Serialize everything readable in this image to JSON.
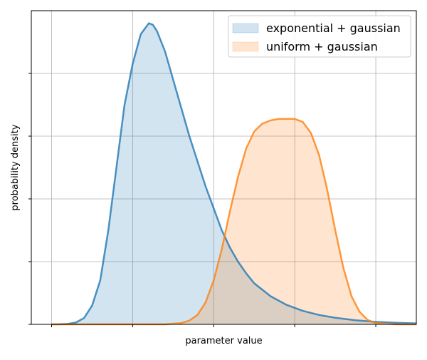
{
  "chart_data": {
    "type": "area",
    "title": "",
    "xlabel": "parameter value",
    "ylabel": "probability density",
    "xlim": [
      -0.5,
      9.0
    ],
    "ylim": [
      0,
      1.0
    ],
    "x_ticks": [
      0,
      2,
      4,
      6,
      8
    ],
    "y_ticks": [
      0,
      0.2,
      0.4,
      0.6,
      0.8
    ],
    "show_tick_labels": false,
    "grid": true,
    "legend_position": "top-right",
    "series": [
      {
        "name": "exponential + gaussian",
        "color": "#1f77b4",
        "x": [
          0,
          0.2,
          0.4,
          0.6,
          0.8,
          1.0,
          1.2,
          1.4,
          1.6,
          1.8,
          2.0,
          2.2,
          2.4,
          2.5,
          2.6,
          2.8,
          3.0,
          3.2,
          3.4,
          3.6,
          3.8,
          4.0,
          4.2,
          4.4,
          4.6,
          4.8,
          5.0,
          5.4,
          5.8,
          6.2,
          6.6,
          7.0,
          7.5,
          8.0,
          8.5,
          9.0
        ],
        "values": [
          0.0,
          0.0002,
          0.0015,
          0.006,
          0.02,
          0.06,
          0.14,
          0.3,
          0.5,
          0.7,
          0.83,
          0.925,
          0.96,
          0.955,
          0.935,
          0.87,
          0.78,
          0.69,
          0.6,
          0.52,
          0.44,
          0.37,
          0.3,
          0.245,
          0.2,
          0.163,
          0.131,
          0.09,
          0.062,
          0.043,
          0.03,
          0.021,
          0.013,
          0.008,
          0.005,
          0.003
        ]
      },
      {
        "name": "uniform + gaussian",
        "color": "#ff7f0e",
        "x": [
          0,
          2.8,
          3.2,
          3.4,
          3.6,
          3.8,
          4.0,
          4.2,
          4.4,
          4.6,
          4.8,
          5.0,
          5.2,
          5.4,
          5.6,
          5.8,
          6.0,
          6.2,
          6.4,
          6.6,
          6.8,
          7.0,
          7.2,
          7.4,
          7.6,
          7.8,
          8.0,
          8.5,
          9.0
        ],
        "values": [
          0.0,
          0.0,
          0.004,
          0.012,
          0.03,
          0.07,
          0.14,
          0.24,
          0.36,
          0.47,
          0.56,
          0.615,
          0.64,
          0.65,
          0.655,
          0.655,
          0.655,
          0.645,
          0.61,
          0.54,
          0.43,
          0.3,
          0.18,
          0.09,
          0.04,
          0.014,
          0.004,
          0.0,
          0.0
        ]
      }
    ]
  }
}
